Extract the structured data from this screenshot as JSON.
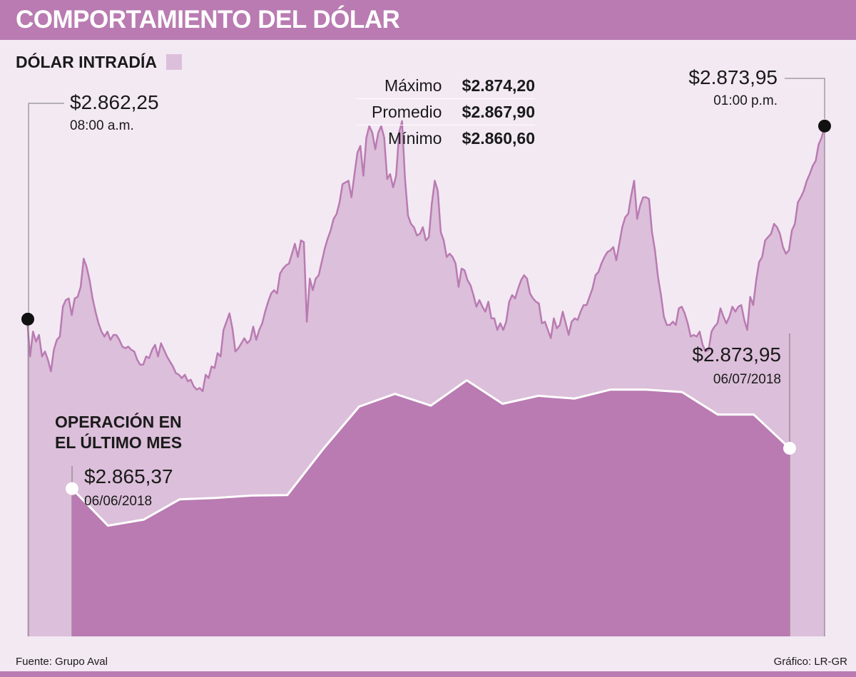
{
  "header": {
    "title": "COMPORTAMIENTO DEL DÓLAR"
  },
  "legend": {
    "label": "DÓLAR INTRADÍA",
    "color": "#dcbfda"
  },
  "stats": [
    {
      "label": "Máximo",
      "value": "$2.874,20"
    },
    {
      "label": "Promedio",
      "value": "$2.867,90"
    },
    {
      "label": "Mínimo",
      "value": "$2.860,60"
    }
  ],
  "annotations": {
    "intraday_open": {
      "value": "$2.862,25",
      "time": "08:00 a.m."
    },
    "intraday_close": {
      "value": "$2.873,95",
      "time": "01:00 p.m."
    },
    "month_start": {
      "value": "$2.865,37",
      "date": "06/06/2018"
    },
    "month_end": {
      "value": "$2.873,95",
      "date": "06/07/2018"
    }
  },
  "monthly_label": "OPERACIÓN EN EL ÚLTIMO MES",
  "footer": {
    "source": "Fuente: Grupo Aval",
    "credit": "Gráfico: LR-GR"
  },
  "colors": {
    "header": "#b97bb2",
    "background": "#f3e9f3",
    "intraday_fill": "#dcbfda",
    "intraday_line": "#b97bb2",
    "monthly_fill": "#b97bb2",
    "monthly_line": "#ffffff"
  },
  "chart_data": [
    {
      "type": "area",
      "name": "Dólar intradía",
      "title": "DÓLAR INTRADÍA",
      "x_start": "08:00 a.m.",
      "x_end": "01:00 p.m.",
      "ylim": [
        2857,
        2876
      ],
      "values": [
        2862.25,
        2860.0,
        2861.5,
        2860.9,
        2861.3,
        2860.0,
        2860.3,
        2859.8,
        2859.1,
        2860.4,
        2861.0,
        2861.2,
        2863.0,
        2863.4,
        2863.5,
        2862.5,
        2863.5,
        2863.6,
        2864.2,
        2865.9,
        2865.4,
        2864.6,
        2863.5,
        2862.7,
        2862.0,
        2861.5,
        2861.2,
        2861.5,
        2861.0,
        2861.3,
        2861.3,
        2861.0,
        2860.6,
        2860.5,
        2860.6,
        2860.4,
        2860.3,
        2859.8,
        2859.5,
        2859.5,
        2860.0,
        2859.9,
        2860.4,
        2860.7,
        2860.0,
        2860.8,
        2860.4,
        2860.0,
        2859.7,
        2859.4,
        2859.0,
        2858.9,
        2858.7,
        2858.9,
        2858.5,
        2858.6,
        2858.2,
        2858.0,
        2858.1,
        2857.9,
        2858.9,
        2858.7,
        2859.4,
        2859.3,
        2860.2,
        2860.0,
        2861.6,
        2862.1,
        2862.6,
        2861.7,
        2860.3,
        2860.5,
        2860.8,
        2861.1,
        2860.8,
        2861.0,
        2861.8,
        2861.0,
        2861.6,
        2862.0,
        2862.7,
        2863.3,
        2863.8,
        2864.0,
        2863.8,
        2865.0,
        2865.3,
        2865.5,
        2865.6,
        2866.2,
        2866.8,
        2866.0,
        2867.0,
        2866.9,
        2862.1,
        2864.7,
        2864.0,
        2864.7,
        2864.9,
        2865.7,
        2866.5,
        2867.1,
        2867.6,
        2868.3,
        2868.6,
        2869.3,
        2870.4,
        2870.5,
        2870.6,
        2869.6,
        2871.0,
        2872.3,
        2872.7,
        2870.9,
        2873.2,
        2873.9,
        2873.5,
        2872.5,
        2873.5,
        2873.9,
        2873.2,
        2870.7,
        2871.0,
        2870.2,
        2870.9,
        2873.5,
        2874.2,
        2870.7,
        2868.5,
        2868.0,
        2867.8,
        2867.3,
        2867.4,
        2867.8,
        2867.0,
        2867.2,
        2869.2,
        2870.6,
        2870.0,
        2867.5,
        2867.0,
        2866.0,
        2866.2,
        2866.0,
        2865.6,
        2864.2,
        2865.3,
        2865.2,
        2864.6,
        2864.3,
        2863.7,
        2863.0,
        2863.4,
        2863.0,
        2862.7,
        2863.3,
        2862.3,
        2862.3,
        2861.6,
        2862.0,
        2861.6,
        2862.1,
        2863.3,
        2863.7,
        2863.5,
        2864.1,
        2864.6,
        2864.9,
        2864.7,
        2863.8,
        2863.5,
        2863.3,
        2863.2,
        2862.0,
        2862.1,
        2861.6,
        2861.1,
        2862.3,
        2861.7,
        2861.9,
        2862.7,
        2862.0,
        2861.3,
        2862.1,
        2862.3,
        2862.2,
        2862.7,
        2863.1,
        2863.1,
        2863.6,
        2864.1,
        2864.9,
        2865.1,
        2865.6,
        2866.0,
        2866.3,
        2866.4,
        2866.6,
        2865.8,
        2866.8,
        2867.8,
        2868.4,
        2868.6,
        2869.7,
        2870.6,
        2868.3,
        2869.1,
        2869.6,
        2869.6,
        2869.5,
        2867.5,
        2866.4,
        2864.8,
        2863.7,
        2862.4,
        2861.9,
        2861.9,
        2862.1,
        2861.9,
        2862.9,
        2863.0,
        2862.6,
        2862.0,
        2861.2,
        2861.3,
        2861.2,
        2861.5,
        2860.7,
        2860.3,
        2860.4,
        2861.5,
        2861.8,
        2862.0,
        2862.9,
        2862.4,
        2862.0,
        2862.4,
        2863.0,
        2862.7,
        2863.0,
        2863.1,
        2862.2,
        2861.6,
        2863.6,
        2863.1,
        2864.6,
        2865.7,
        2866.0,
        2867.0,
        2867.2,
        2867.4,
        2868.0,
        2867.8,
        2867.4,
        2866.6,
        2866.2,
        2866.4,
        2867.6,
        2868.0,
        2869.3,
        2869.6,
        2870.0,
        2870.6,
        2871.0,
        2871.5,
        2871.8,
        2872.8,
        2873.2,
        2873.9
      ]
    },
    {
      "type": "area",
      "name": "Operación en el último mes",
      "title": "OPERACIÓN EN EL ÚLTIMO MES",
      "x_start": "06/06/2018",
      "x_end": "06/07/2018",
      "ylim": [
        2842,
        2895
      ],
      "values": [
        2865.37,
        2857.5,
        2858.8,
        2863.1,
        2863.4,
        2863.9,
        2864.0,
        2873.8,
        2882.8,
        2885.5,
        2883.0,
        2888.4,
        2883.4,
        2885.1,
        2884.5,
        2886.4,
        2886.4,
        2885.9,
        2881.1,
        2881.1,
        2873.95
      ]
    }
  ]
}
